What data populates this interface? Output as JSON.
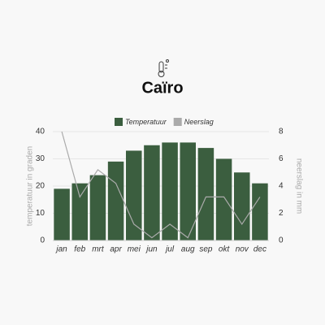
{
  "chart_data": {
    "type": "bar",
    "title": "Caïro",
    "categories": [
      "jan",
      "feb",
      "mrt",
      "apr",
      "mei",
      "jun",
      "jul",
      "aug",
      "sep",
      "okt",
      "nov",
      "dec"
    ],
    "series": [
      {
        "name": "Temperatuur",
        "type": "bar",
        "color": "#3b5e3f",
        "values": [
          19,
          21,
          24,
          29,
          33,
          35,
          36,
          36,
          34,
          30,
          25,
          21
        ]
      },
      {
        "name": "Neerslag",
        "type": "line",
        "axis": "y2",
        "color": "#aaaaaa",
        "values": [
          8,
          3.2,
          5.2,
          4.2,
          1.2,
          0.2,
          1.2,
          0.2,
          3.2,
          3.2,
          1.2,
          3.2
        ]
      }
    ],
    "ylabel": "temperatuur in graden",
    "y2label": "neerslag in mm",
    "ylim": [
      0,
      40
    ],
    "yticks": [
      0,
      10,
      20,
      30,
      40
    ],
    "y2lim": [
      0,
      8
    ],
    "y2ticks": [
      0,
      2,
      4,
      6,
      8
    ],
    "grid": true,
    "legend": "top"
  }
}
